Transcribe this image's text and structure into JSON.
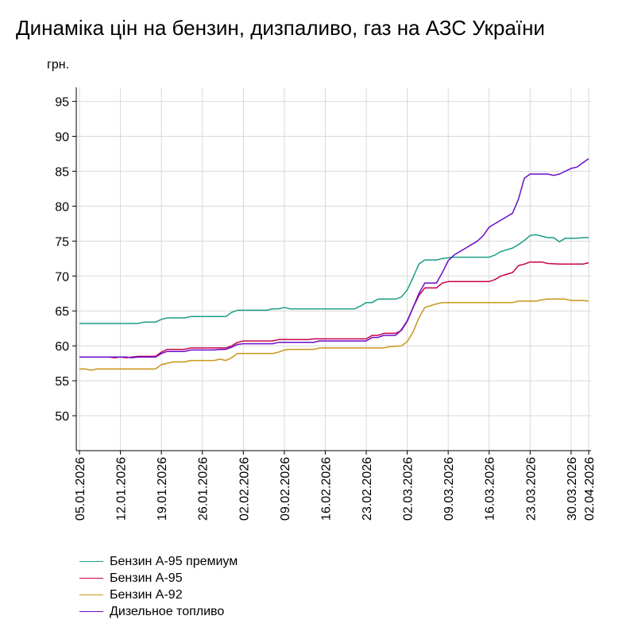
{
  "chart_data": {
    "type": "line",
    "title": "Динаміка цін на бензин, дизпаливо, газ на АЗС України",
    "ylabel": "грн.",
    "xlabel": "",
    "ylim": [
      45,
      97
    ],
    "yticks": [
      50,
      55,
      60,
      65,
      70,
      75,
      80,
      85,
      90,
      95
    ],
    "x_range": [
      "05.01.2026",
      "02.04.2026"
    ],
    "xticks": [
      "05.01.2026",
      "12.01.2026",
      "19.01.2026",
      "26.01.2026",
      "02.02.2026",
      "09.02.2026",
      "16.02.2026",
      "23.02.2026",
      "02.03.2026",
      "09.03.2026",
      "16.03.2026",
      "23.03.2026",
      "30.03.2026",
      "02.04.2026"
    ],
    "grid": true,
    "legend_position": "bottom-left",
    "series": [
      {
        "name": "Бензин А-95 премиум",
        "color": "#1a9e84",
        "points": [
          [
            "05.01.2026",
            63.2
          ],
          [
            "15.01.2026",
            63.2
          ],
          [
            "16.01.2026",
            63.4
          ],
          [
            "18.01.2026",
            63.4
          ],
          [
            "19.01.2026",
            63.8
          ],
          [
            "20.01.2026",
            64.0
          ],
          [
            "23.01.2026",
            64.0
          ],
          [
            "24.01.2026",
            64.2
          ],
          [
            "30.01.2026",
            64.2
          ],
          [
            "31.01.2026",
            64.8
          ],
          [
            "01.02.2026",
            65.1
          ],
          [
            "06.02.2026",
            65.1
          ],
          [
            "07.02.2026",
            65.3
          ],
          [
            "08.02.2026",
            65.3
          ],
          [
            "09.02.2026",
            65.5
          ],
          [
            "10.02.2026",
            65.3
          ],
          [
            "21.02.2026",
            65.3
          ],
          [
            "22.02.2026",
            65.7
          ],
          [
            "23.02.2026",
            66.2
          ],
          [
            "24.02.2026",
            66.2
          ],
          [
            "25.02.2026",
            66.7
          ],
          [
            "28.02.2026",
            66.7
          ],
          [
            "01.03.2026",
            67.0
          ],
          [
            "02.03.2026",
            68.0
          ],
          [
            "03.03.2026",
            69.8
          ],
          [
            "04.03.2026",
            71.7
          ],
          [
            "05.03.2026",
            72.3
          ],
          [
            "07.03.2026",
            72.3
          ],
          [
            "08.03.2026",
            72.5
          ],
          [
            "09.03.2026",
            72.6
          ],
          [
            "10.03.2026",
            72.7
          ],
          [
            "16.03.2026",
            72.7
          ],
          [
            "17.03.2026",
            73.0
          ],
          [
            "18.03.2026",
            73.5
          ],
          [
            "20.03.2026",
            74.0
          ],
          [
            "21.03.2026",
            74.5
          ],
          [
            "22.03.2026",
            75.1
          ],
          [
            "23.03.2026",
            75.8
          ],
          [
            "24.03.2026",
            75.9
          ],
          [
            "26.03.2026",
            75.5
          ],
          [
            "27.03.2026",
            75.5
          ],
          [
            "28.03.2026",
            74.9
          ],
          [
            "29.03.2026",
            75.4
          ],
          [
            "31.03.2026",
            75.4
          ],
          [
            "01.04.2026",
            75.5
          ],
          [
            "02.04.2026",
            75.5
          ]
        ]
      },
      {
        "name": "Бензин А-95",
        "color": "#c8004b",
        "points": [
          [
            "05.01.2026",
            58.4
          ],
          [
            "10.01.2026",
            58.4
          ],
          [
            "11.01.2026",
            58.3
          ],
          [
            "12.01.2026",
            58.4
          ],
          [
            "13.01.2026",
            58.3
          ],
          [
            "14.01.2026",
            58.4
          ],
          [
            "15.01.2026",
            58.5
          ],
          [
            "18.01.2026",
            58.5
          ],
          [
            "19.01.2026",
            59.1
          ],
          [
            "20.01.2026",
            59.5
          ],
          [
            "23.01.2026",
            59.5
          ],
          [
            "24.01.2026",
            59.7
          ],
          [
            "30.01.2026",
            59.7
          ],
          [
            "31.01.2026",
            60.0
          ],
          [
            "01.02.2026",
            60.5
          ],
          [
            "02.02.2026",
            60.7
          ],
          [
            "07.02.2026",
            60.7
          ],
          [
            "08.02.2026",
            60.9
          ],
          [
            "13.02.2026",
            60.9
          ],
          [
            "14.02.2026",
            61.0
          ],
          [
            "23.02.2026",
            61.0
          ],
          [
            "24.02.2026",
            61.5
          ],
          [
            "25.02.2026",
            61.5
          ],
          [
            "26.02.2026",
            61.8
          ],
          [
            "28.02.2026",
            61.8
          ],
          [
            "01.03.2026",
            62.2
          ],
          [
            "02.03.2026",
            63.5
          ],
          [
            "03.03.2026",
            65.5
          ],
          [
            "04.03.2026",
            67.2
          ],
          [
            "05.03.2026",
            68.3
          ],
          [
            "07.03.2026",
            68.3
          ],
          [
            "08.03.2026",
            69.0
          ],
          [
            "09.03.2026",
            69.2
          ],
          [
            "16.03.2026",
            69.2
          ],
          [
            "17.03.2026",
            69.5
          ],
          [
            "18.03.2026",
            70.0
          ],
          [
            "20.03.2026",
            70.5
          ],
          [
            "21.03.2026",
            71.5
          ],
          [
            "22.03.2026",
            71.7
          ],
          [
            "23.03.2026",
            72.0
          ],
          [
            "25.03.2026",
            72.0
          ],
          [
            "26.03.2026",
            71.8
          ],
          [
            "28.03.2026",
            71.7
          ],
          [
            "01.04.2026",
            71.7
          ],
          [
            "02.04.2026",
            71.9
          ]
        ]
      },
      {
        "name": "Бензин А-92",
        "color": "#c8961a",
        "points": [
          [
            "05.01.2026",
            56.7
          ],
          [
            "06.01.2026",
            56.7
          ],
          [
            "07.01.2026",
            56.5
          ],
          [
            "08.01.2026",
            56.7
          ],
          [
            "18.01.2026",
            56.7
          ],
          [
            "19.01.2026",
            57.3
          ],
          [
            "20.01.2026",
            57.5
          ],
          [
            "21.01.2026",
            57.7
          ],
          [
            "23.01.2026",
            57.7
          ],
          [
            "24.01.2026",
            57.9
          ],
          [
            "28.01.2026",
            57.9
          ],
          [
            "29.01.2026",
            58.1
          ],
          [
            "30.01.2026",
            57.9
          ],
          [
            "31.01.2026",
            58.3
          ],
          [
            "01.02.2026",
            58.9
          ],
          [
            "07.02.2026",
            58.9
          ],
          [
            "08.02.2026",
            59.1
          ],
          [
            "09.02.2026",
            59.4
          ],
          [
            "10.02.2026",
            59.5
          ],
          [
            "14.02.2026",
            59.5
          ],
          [
            "15.02.2026",
            59.7
          ],
          [
            "26.02.2026",
            59.7
          ],
          [
            "27.02.2026",
            59.9
          ],
          [
            "01.03.2026",
            60.0
          ],
          [
            "02.03.2026",
            60.6
          ],
          [
            "03.03.2026",
            62.0
          ],
          [
            "04.03.2026",
            64.0
          ],
          [
            "05.03.2026",
            65.5
          ],
          [
            "07.03.2026",
            66.0
          ],
          [
            "08.03.2026",
            66.2
          ],
          [
            "20.03.2026",
            66.2
          ],
          [
            "21.03.2026",
            66.4
          ],
          [
            "24.03.2026",
            66.4
          ],
          [
            "25.03.2026",
            66.6
          ],
          [
            "26.03.2026",
            66.7
          ],
          [
            "29.03.2026",
            66.7
          ],
          [
            "30.03.2026",
            66.5
          ],
          [
            "01.04.2026",
            66.5
          ],
          [
            "02.04.2026",
            66.4
          ]
        ]
      },
      {
        "name": "Дизельное топливо",
        "color": "#6a0dc8",
        "points": [
          [
            "05.01.2026",
            58.4
          ],
          [
            "13.01.2026",
            58.4
          ],
          [
            "14.01.2026",
            58.3
          ],
          [
            "15.01.2026",
            58.4
          ],
          [
            "18.01.2026",
            58.4
          ],
          [
            "19.01.2026",
            58.9
          ],
          [
            "20.01.2026",
            59.2
          ],
          [
            "23.01.2026",
            59.2
          ],
          [
            "24.01.2026",
            59.4
          ],
          [
            "28.01.2026",
            59.4
          ],
          [
            "29.01.2026",
            59.5
          ],
          [
            "30.01.2026",
            59.5
          ],
          [
            "31.01.2026",
            59.8
          ],
          [
            "01.02.2026",
            60.2
          ],
          [
            "02.02.2026",
            60.3
          ],
          [
            "07.02.2026",
            60.3
          ],
          [
            "08.02.2026",
            60.5
          ],
          [
            "14.02.2026",
            60.5
          ],
          [
            "15.02.2026",
            60.7
          ],
          [
            "23.02.2026",
            60.7
          ],
          [
            "24.02.2026",
            61.2
          ],
          [
            "25.02.2026",
            61.2
          ],
          [
            "26.02.2026",
            61.5
          ],
          [
            "28.02.2026",
            61.5
          ],
          [
            "01.03.2026",
            62.3
          ],
          [
            "02.03.2026",
            63.6
          ],
          [
            "03.03.2026",
            65.5
          ],
          [
            "04.03.2026",
            67.5
          ],
          [
            "05.03.2026",
            69.0
          ],
          [
            "07.03.2026",
            69.0
          ],
          [
            "08.03.2026",
            70.5
          ],
          [
            "09.03.2026",
            72.2
          ],
          [
            "10.03.2026",
            73.0
          ],
          [
            "11.03.2026",
            73.5
          ],
          [
            "12.03.2026",
            74.0
          ],
          [
            "13.03.2026",
            74.5
          ],
          [
            "14.03.2026",
            75.0
          ],
          [
            "15.03.2026",
            75.8
          ],
          [
            "16.03.2026",
            77.0
          ],
          [
            "17.03.2026",
            77.5
          ],
          [
            "18.03.2026",
            78.0
          ],
          [
            "19.03.2026",
            78.5
          ],
          [
            "20.03.2026",
            79.0
          ],
          [
            "21.03.2026",
            81.0
          ],
          [
            "22.03.2026",
            84.0
          ],
          [
            "23.03.2026",
            84.6
          ],
          [
            "26.03.2026",
            84.6
          ],
          [
            "27.03.2026",
            84.4
          ],
          [
            "28.03.2026",
            84.6
          ],
          [
            "29.03.2026",
            85.0
          ],
          [
            "30.03.2026",
            85.4
          ],
          [
            "31.03.2026",
            85.6
          ],
          [
            "01.04.2026",
            86.2
          ],
          [
            "02.04.2026",
            86.8
          ]
        ]
      }
    ]
  }
}
